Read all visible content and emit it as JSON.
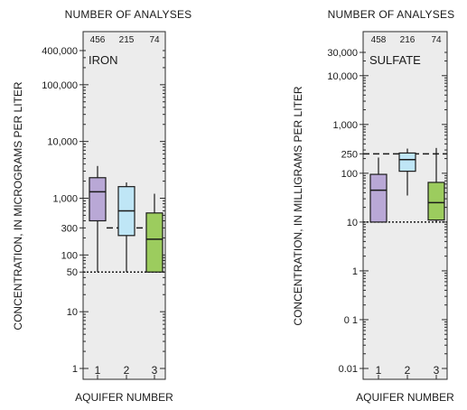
{
  "chart_data": [
    {
      "type": "box",
      "title": "IRON",
      "top_axis_title": "NUMBER OF ANALYSES",
      "xlabel": "AQUIFER NUMBER",
      "ylabel": "CONCENTRATION, IN MICROGRAMS PER LITER",
      "yscale": "log",
      "ylim": [
        1,
        400000
      ],
      "grid": false,
      "categories": [
        "1",
        "2",
        "3"
      ],
      "counts": [
        "456",
        "215",
        "74"
      ],
      "y_tick_labels": [
        "1",
        "10",
        "50",
        "100",
        "300",
        "1,000",
        "10,000",
        "100,000",
        "400,000"
      ],
      "y_tick_values": [
        1,
        10,
        50,
        100,
        300,
        1000,
        10000,
        100000,
        400000
      ],
      "boxes": [
        {
          "category": "1",
          "whisker_low": 50,
          "q1": 400,
          "median": 1300,
          "q3": 2300,
          "whisker_high": 3700
        },
        {
          "category": "2",
          "whisker_low": 50,
          "q1": 220,
          "median": 600,
          "q3": 1600,
          "whisker_high": 1900
        },
        {
          "category": "3",
          "whisker_low": 50,
          "q1": 50,
          "median": 190,
          "q3": 550,
          "whisker_high": 1200
        }
      ],
      "reference_lines": [
        {
          "value": 50,
          "style": "dotted",
          "span": "all"
        },
        {
          "value": 300,
          "style": "dashed",
          "span": "between-boxes"
        }
      ],
      "colors": [
        "#b9a8d6",
        "#bfe6f6",
        "#9ccc5e"
      ]
    },
    {
      "type": "box",
      "title": "SULFATE",
      "top_axis_title": "NUMBER OF ANALYSES",
      "xlabel": "AQUIFER NUMBER",
      "ylabel": "CONCENTRATION, IN MILLIGRAMS PER LITER",
      "yscale": "log",
      "ylim": [
        0.01,
        30000
      ],
      "grid": false,
      "categories": [
        "1",
        "2",
        "3"
      ],
      "counts": [
        "458",
        "216",
        "74"
      ],
      "y_tick_labels": [
        "0.01",
        "0 1",
        "1",
        "10",
        "100",
        "250",
        "1,000",
        "10,000",
        "30,000"
      ],
      "y_tick_values": [
        0.01,
        0.1,
        1,
        10,
        100,
        250,
        1000,
        10000,
        30000
      ],
      "boxes": [
        {
          "category": "1",
          "whisker_low": 10,
          "q1": 10,
          "median": 45,
          "q3": 95,
          "whisker_high": 210
        },
        {
          "category": "2",
          "whisker_low": 35,
          "q1": 110,
          "median": 190,
          "q3": 260,
          "whisker_high": 320
        },
        {
          "category": "3",
          "whisker_low": 10,
          "q1": 11,
          "median": 25,
          "q3": 65,
          "whisker_high": 330
        }
      ],
      "reference_lines": [
        {
          "value": 10,
          "style": "dotted",
          "span": "all"
        },
        {
          "value": 250,
          "style": "dashed",
          "span": "all"
        }
      ],
      "colors": [
        "#b9a8d6",
        "#bfe6f6",
        "#9ccc5e"
      ]
    }
  ]
}
